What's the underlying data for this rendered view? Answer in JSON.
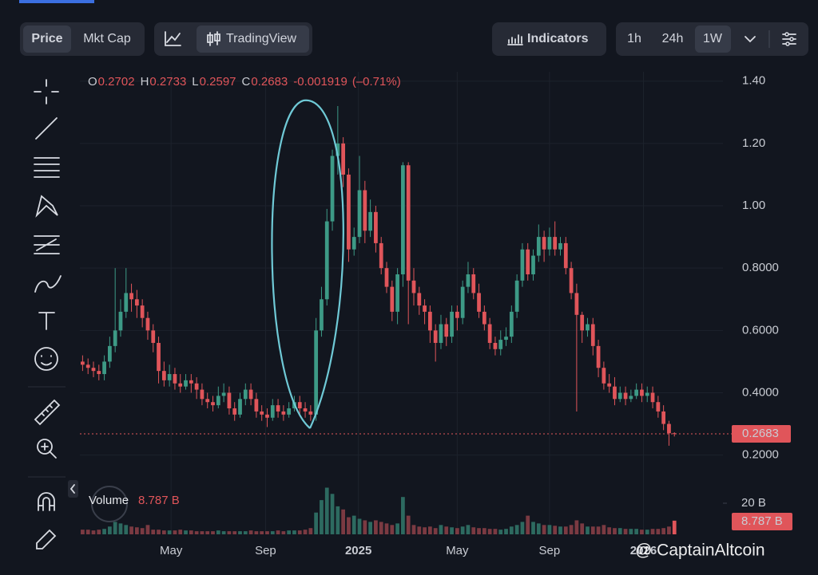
{
  "toolbar": {
    "price": "Price",
    "mkt_cap": "Mkt Cap",
    "tradingview": "TradingView",
    "indicators": "Indicators",
    "timeframes": [
      "1h",
      "24h",
      "1W"
    ]
  },
  "watermark": "@ CaptainAltcoin",
  "chart_data": {
    "type": "candlestick",
    "ohlc_labels": [
      "O",
      "H",
      "L",
      "C"
    ],
    "change": -0.001919,
    "change_pct": "(–0.71%)",
    "volume_label": "Volume",
    "volume_last_label": "8.787 B",
    "up_color": "#3d9a86",
    "down_color": "#e0555a",
    "up_volume_color": "#2d6a60",
    "down_volume_color": "#7b3a42",
    "xlim": [
      0,
      118
    ],
    "xticks": [
      {
        "value": 16.8,
        "label": "May"
      },
      {
        "value": 34.2,
        "label": "Sep"
      },
      {
        "value": 51.3,
        "label": "2025"
      },
      {
        "value": 69.5,
        "label": "May"
      },
      {
        "value": 86.5,
        "label": "Sep"
      },
      {
        "value": 103.8,
        "label": "2026"
      }
    ],
    "ylim": [
      0.13,
      1.43
    ],
    "yticks": [
      {
        "value": 1.4,
        "label": "1.40"
      },
      {
        "value": 1.2,
        "label": "1.20"
      },
      {
        "value": 1,
        "label": "1.00"
      },
      {
        "value": 0.8,
        "label": "0.8000"
      },
      {
        "value": 0.6,
        "label": "0.6000"
      },
      {
        "value": 0.4,
        "label": "0.4000"
      },
      {
        "value": 0.2,
        "label": "0.2000"
      }
    ],
    "volume_ylim": [
      0,
      30
    ],
    "volume_yticks": [
      {
        "value": 20,
        "label": "20 B"
      }
    ],
    "grid": true,
    "open": [
      0.5,
      0.49,
      0.48,
      0.47,
      0.46,
      0.5,
      0.55,
      0.6,
      0.66,
      0.72,
      0.7,
      0.68,
      0.64,
      0.6,
      0.56,
      0.47,
      0.44,
      0.46,
      0.43,
      0.42,
      0.44,
      0.43,
      0.41,
      0.38,
      0.37,
      0.36,
      0.39,
      0.4,
      0.35,
      0.33,
      0.38,
      0.41,
      0.38,
      0.34,
      0.33,
      0.32,
      0.36,
      0.34,
      0.33,
      0.35,
      0.37,
      0.35,
      0.34,
      0.33,
      0.6,
      0.7,
      0.95,
      1.16,
      1.2,
      1.1,
      0.86,
      0.9,
      1.05,
      0.92,
      0.98,
      0.88,
      0.8,
      0.74,
      0.66,
      0.78,
      1.13,
      0.76,
      0.72,
      0.68,
      0.66,
      0.6,
      0.56,
      0.62,
      0.58,
      0.66,
      0.64,
      0.74,
      0.78,
      0.72,
      0.66,
      0.62,
      0.56,
      0.54,
      0.57,
      0.58,
      0.66,
      0.76,
      0.86,
      0.78,
      0.84,
      0.9,
      0.86,
      0.9,
      0.86,
      0.88,
      0.8,
      0.72,
      0.65,
      0.6,
      0.62,
      0.55,
      0.48,
      0.43,
      0.42,
      0.38,
      0.4,
      0.38,
      0.39,
      0.41,
      0.39,
      0.4,
      0.37,
      0.34,
      0.3,
      0.2702
    ],
    "high": [
      0.52,
      0.51,
      0.5,
      0.49,
      0.52,
      0.58,
      0.8,
      0.7,
      0.8,
      0.75,
      0.73,
      0.7,
      0.66,
      0.62,
      0.58,
      0.5,
      0.49,
      0.48,
      0.46,
      0.46,
      0.46,
      0.45,
      0.43,
      0.4,
      0.39,
      0.42,
      0.43,
      0.42,
      0.37,
      0.4,
      0.43,
      0.43,
      0.4,
      0.36,
      0.35,
      0.38,
      0.38,
      0.36,
      0.37,
      0.39,
      0.39,
      0.37,
      0.36,
      0.64,
      0.74,
      0.99,
      1.18,
      1.32,
      1.22,
      1.12,
      0.93,
      1.16,
      1.08,
      1.02,
      1.0,
      0.9,
      0.82,
      0.76,
      0.8,
      1.14,
      1.14,
      0.8,
      0.74,
      0.7,
      0.68,
      0.62,
      0.65,
      0.64,
      0.68,
      0.68,
      0.76,
      0.82,
      0.8,
      0.75,
      0.68,
      0.64,
      0.58,
      0.6,
      0.61,
      0.68,
      0.78,
      0.88,
      0.88,
      0.86,
      0.94,
      0.92,
      0.93,
      0.95,
      0.9,
      0.9,
      0.82,
      0.75,
      0.66,
      0.64,
      0.64,
      0.57,
      0.5,
      0.46,
      0.45,
      0.42,
      0.42,
      0.41,
      0.43,
      0.43,
      0.42,
      0.42,
      0.39,
      0.36,
      0.31,
      0.2733
    ],
    "low": [
      0.47,
      0.46,
      0.45,
      0.44,
      0.44,
      0.48,
      0.53,
      0.58,
      0.64,
      0.66,
      0.64,
      0.61,
      0.57,
      0.53,
      0.43,
      0.42,
      0.42,
      0.41,
      0.4,
      0.41,
      0.4,
      0.38,
      0.36,
      0.35,
      0.34,
      0.35,
      0.37,
      0.33,
      0.31,
      0.32,
      0.36,
      0.36,
      0.32,
      0.31,
      0.29,
      0.31,
      0.32,
      0.31,
      0.32,
      0.34,
      0.33,
      0.32,
      0.31,
      0.31,
      0.58,
      0.68,
      0.92,
      1.1,
      1.06,
      0.82,
      0.84,
      0.88,
      0.88,
      0.9,
      0.85,
      0.78,
      0.72,
      0.63,
      0.62,
      0.74,
      0.62,
      0.68,
      0.65,
      0.62,
      0.56,
      0.5,
      0.54,
      0.55,
      0.56,
      0.6,
      0.62,
      0.72,
      0.7,
      0.64,
      0.6,
      0.54,
      0.52,
      0.52,
      0.55,
      0.56,
      0.64,
      0.74,
      0.76,
      0.76,
      0.82,
      0.82,
      0.84,
      0.84,
      0.84,
      0.78,
      0.7,
      0.34,
      0.56,
      0.58,
      0.52,
      0.45,
      0.41,
      0.4,
      0.36,
      0.37,
      0.36,
      0.37,
      0.38,
      0.37,
      0.37,
      0.35,
      0.32,
      0.28,
      0.23,
      0.2597
    ],
    "close": [
      0.49,
      0.48,
      0.47,
      0.46,
      0.5,
      0.55,
      0.6,
      0.66,
      0.72,
      0.7,
      0.68,
      0.64,
      0.6,
      0.56,
      0.47,
      0.44,
      0.46,
      0.43,
      0.42,
      0.44,
      0.43,
      0.41,
      0.38,
      0.37,
      0.36,
      0.39,
      0.4,
      0.35,
      0.33,
      0.38,
      0.41,
      0.38,
      0.34,
      0.33,
      0.32,
      0.36,
      0.34,
      0.33,
      0.35,
      0.37,
      0.35,
      0.34,
      0.33,
      0.6,
      0.7,
      0.95,
      1.16,
      1.2,
      1.1,
      0.86,
      0.9,
      1.05,
      0.92,
      0.98,
      0.88,
      0.8,
      0.74,
      0.66,
      0.78,
      1.13,
      0.76,
      0.72,
      0.68,
      0.66,
      0.6,
      0.56,
      0.62,
      0.58,
      0.66,
      0.64,
      0.74,
      0.78,
      0.72,
      0.66,
      0.62,
      0.56,
      0.54,
      0.57,
      0.58,
      0.66,
      0.76,
      0.86,
      0.78,
      0.84,
      0.9,
      0.86,
      0.9,
      0.86,
      0.88,
      0.8,
      0.72,
      0.65,
      0.6,
      0.62,
      0.55,
      0.48,
      0.43,
      0.42,
      0.38,
      0.4,
      0.38,
      0.39,
      0.41,
      0.39,
      0.4,
      0.37,
      0.34,
      0.3,
      0.2702,
      0.2683
    ],
    "volume": [
      3,
      3,
      2.5,
      3,
      3.5,
      5,
      8,
      7,
      6,
      5,
      4.5,
      4,
      6,
      3,
      3,
      2.5,
      2.5,
      2.5,
      3,
      2.5,
      2.5,
      2,
      2,
      2,
      2,
      2.5,
      2,
      2,
      2,
      2,
      2,
      2.5,
      2,
      2,
      2,
      2,
      2.5,
      2,
      2.5,
      2.5,
      2.5,
      3,
      4,
      14,
      22,
      30,
      26,
      18,
      16,
      11,
      12,
      10,
      9,
      8,
      9,
      8,
      7,
      6,
      7,
      24,
      12,
      6,
      5,
      4.5,
      5,
      4,
      6,
      5,
      4.5,
      4,
      5,
      6,
      4.5,
      4,
      4,
      3.5,
      3.5,
      3,
      3.5,
      5,
      6,
      8,
      12,
      8,
      7,
      6,
      6,
      5.5,
      5,
      5,
      6,
      9,
      7,
      5,
      5,
      5,
      6,
      4.5,
      4,
      4,
      3.5,
      3.5,
      3.5,
      3,
      3,
      3.5,
      3.5,
      4,
      5,
      8.787
    ]
  }
}
